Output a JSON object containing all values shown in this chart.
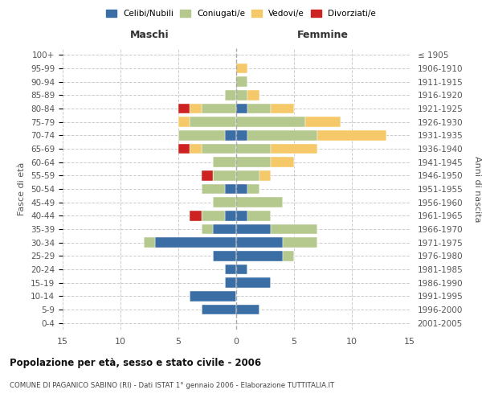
{
  "age_groups": [
    "0-4",
    "5-9",
    "10-14",
    "15-19",
    "20-24",
    "25-29",
    "30-34",
    "35-39",
    "40-44",
    "45-49",
    "50-54",
    "55-59",
    "60-64",
    "65-69",
    "70-74",
    "75-79",
    "80-84",
    "85-89",
    "90-94",
    "95-99",
    "100+"
  ],
  "birth_years": [
    "2001-2005",
    "1996-2000",
    "1991-1995",
    "1986-1990",
    "1981-1985",
    "1976-1980",
    "1971-1975",
    "1966-1970",
    "1961-1965",
    "1956-1960",
    "1951-1955",
    "1946-1950",
    "1941-1945",
    "1936-1940",
    "1931-1935",
    "1926-1930",
    "1921-1925",
    "1916-1920",
    "1911-1915",
    "1906-1910",
    "≤ 1905"
  ],
  "colors": {
    "celibi": "#3a6ea5",
    "coniugati": "#b5c98e",
    "vedovi": "#f5c96a",
    "divorziati": "#cc2222"
  },
  "males": {
    "celibi": [
      0,
      3,
      4,
      1,
      1,
      2,
      7,
      2,
      1,
      0,
      1,
      0,
      0,
      0,
      1,
      0,
      0,
      0,
      0,
      0,
      0
    ],
    "coniugati": [
      0,
      0,
      0,
      0,
      0,
      0,
      1,
      1,
      2,
      2,
      2,
      2,
      2,
      3,
      4,
      4,
      3,
      1,
      0,
      0,
      0
    ],
    "vedovi": [
      0,
      0,
      0,
      0,
      0,
      0,
      0,
      0,
      0,
      0,
      0,
      0,
      0,
      1,
      0,
      1,
      1,
      0,
      0,
      0,
      0
    ],
    "divorziati": [
      0,
      0,
      0,
      0,
      0,
      0,
      0,
      0,
      1,
      0,
      0,
      1,
      0,
      1,
      0,
      0,
      1,
      0,
      0,
      0,
      0
    ]
  },
  "females": {
    "celibi": [
      0,
      2,
      0,
      3,
      1,
      4,
      4,
      3,
      1,
      0,
      1,
      0,
      0,
      0,
      1,
      0,
      1,
      0,
      0,
      0,
      0
    ],
    "coniugati": [
      0,
      0,
      0,
      0,
      0,
      1,
      3,
      4,
      2,
      4,
      1,
      2,
      3,
      3,
      6,
      6,
      2,
      1,
      1,
      0,
      0
    ],
    "vedovi": [
      0,
      0,
      0,
      0,
      0,
      0,
      0,
      0,
      0,
      0,
      0,
      1,
      2,
      4,
      6,
      3,
      2,
      1,
      0,
      1,
      0
    ],
    "divorziati": [
      0,
      0,
      0,
      0,
      0,
      0,
      0,
      0,
      0,
      0,
      0,
      0,
      0,
      0,
      0,
      0,
      0,
      0,
      0,
      0,
      0
    ]
  },
  "xlim": 15,
  "title": "Popolazione per età, sesso e stato civile - 2006",
  "subtitle": "COMUNE DI PAGANICO SABINO (RI) - Dati ISTAT 1° gennaio 2006 - Elaborazione TUTTITALIA.IT",
  "ylabel_left": "Fasce di età",
  "ylabel_right": "Anni di nascita",
  "xlabel_left": "Maschi",
  "xlabel_right": "Femmine",
  "legend_labels": [
    "Celibi/Nubili",
    "Coniugati/e",
    "Vedovi/e",
    "Divorziati/e"
  ]
}
